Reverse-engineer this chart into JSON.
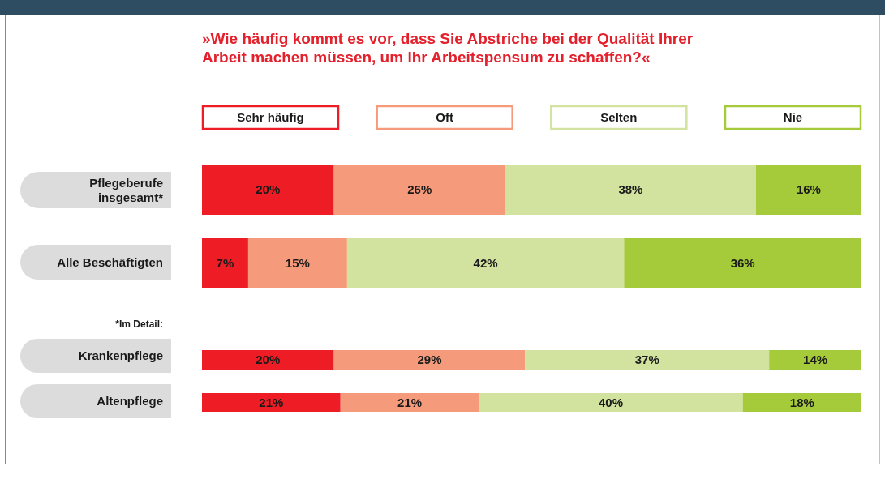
{
  "chart_data": {
    "type": "bar",
    "orientation": "horizontal",
    "stacked": true,
    "legend": "top",
    "title": "»Wie häufig kommt es vor, dass Sie Abstriche bei der Qualität Ihrer Arbeit machen müssen, um Ihr Arbeitspensum zu schaffen?«",
    "categories": [
      "Pflegeberufe insgesamt*",
      "Alle Beschäftigten",
      "Krankenpflege",
      "Altenpflege"
    ],
    "annotations": [
      "*Im Detail:"
    ],
    "series": [
      {
        "name": "Sehr häufig",
        "color": "#ee1c25",
        "values": [
          20,
          7,
          20,
          21
        ],
        "value_labels": [
          "20%",
          "7%",
          "20%",
          "21%"
        ]
      },
      {
        "name": "Oft",
        "color": "#f59a7a",
        "values": [
          26,
          15,
          29,
          21
        ],
        "value_labels": [
          "26%",
          "15%",
          "29%",
          "21%"
        ]
      },
      {
        "name": "Selten",
        "color": "#d2e39f",
        "values": [
          38,
          42,
          37,
          40
        ],
        "value_labels": [
          "38%",
          "42%",
          "37%",
          "40%"
        ]
      },
      {
        "name": "Nie",
        "color": "#a6cb3a",
        "values": [
          16,
          36,
          14,
          18
        ],
        "value_labels": [
          "16%",
          "36%",
          "14%",
          "18%"
        ]
      }
    ]
  }
}
